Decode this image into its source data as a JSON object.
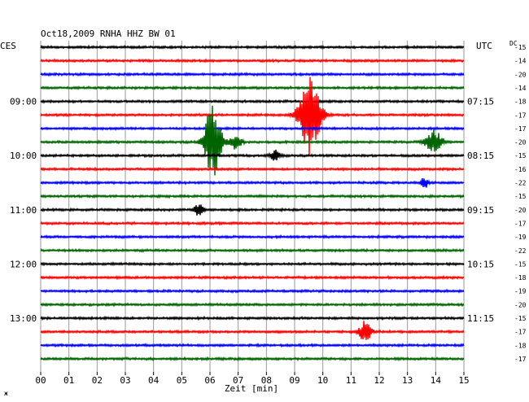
{
  "header": {
    "title": "Oct18,2009   RNHA HHZ BW 01",
    "left_zone": "CES",
    "right_zone": "UTC",
    "dc_label": "DC"
  },
  "chart_data": {
    "type": "line",
    "title": "Oct18,2009   RNHA HHZ BW 01",
    "xlabel": "Zeit [min]",
    "xlim": [
      0,
      15
    ],
    "x_ticks": [
      "00",
      "01",
      "02",
      "03",
      "04",
      "05",
      "06",
      "07",
      "08",
      "09",
      "10",
      "11",
      "12",
      "13",
      "14",
      "15"
    ],
    "trace_count": 24,
    "trace_colors": [
      "#000000",
      "#ff0000",
      "#0000ff",
      "#006400"
    ],
    "left_time_labels": [
      {
        "trace": 4,
        "text": "09:00"
      },
      {
        "trace": 8,
        "text": "10:00"
      },
      {
        "trace": 12,
        "text": "11:00"
      },
      {
        "trace": 16,
        "text": "12:00"
      },
      {
        "trace": 20,
        "text": "13:00"
      }
    ],
    "right_time_labels": [
      {
        "trace": 4,
        "text": "07:15"
      },
      {
        "trace": 8,
        "text": "08:15"
      },
      {
        "trace": 12,
        "text": "09:15"
      },
      {
        "trace": 16,
        "text": "10:15"
      },
      {
        "trace": 20,
        "text": "11:15"
      }
    ],
    "dc_offsets": [
      "-15",
      "-14",
      "-20",
      "-14",
      "-18",
      "-17",
      "-17",
      "-20",
      "-15",
      "-16",
      "-22",
      "-15",
      "-20",
      "-17",
      "-19",
      "-22",
      "-15",
      "-18",
      "-19",
      "-20",
      "-15",
      "-17",
      "-18",
      "-17"
    ],
    "events": [
      {
        "trace": 5,
        "minute": 9.55,
        "amplitude": 2.5,
        "duration_min": 0.9
      },
      {
        "trace": 7,
        "minute": 6.1,
        "amplitude": 2.4,
        "duration_min": 0.7
      },
      {
        "trace": 7,
        "minute": 6.9,
        "amplitude": 0.45,
        "duration_min": 0.5
      },
      {
        "trace": 7,
        "minute": 13.95,
        "amplitude": 0.7,
        "duration_min": 0.7
      },
      {
        "trace": 8,
        "minute": 8.3,
        "amplitude": 0.35,
        "duration_min": 0.4
      },
      {
        "trace": 10,
        "minute": 13.6,
        "amplitude": 0.35,
        "duration_min": 0.3
      },
      {
        "trace": 12,
        "minute": 5.6,
        "amplitude": 0.35,
        "duration_min": 0.4
      },
      {
        "trace": 21,
        "minute": 11.5,
        "amplitude": 0.65,
        "duration_min": 0.5
      }
    ]
  }
}
